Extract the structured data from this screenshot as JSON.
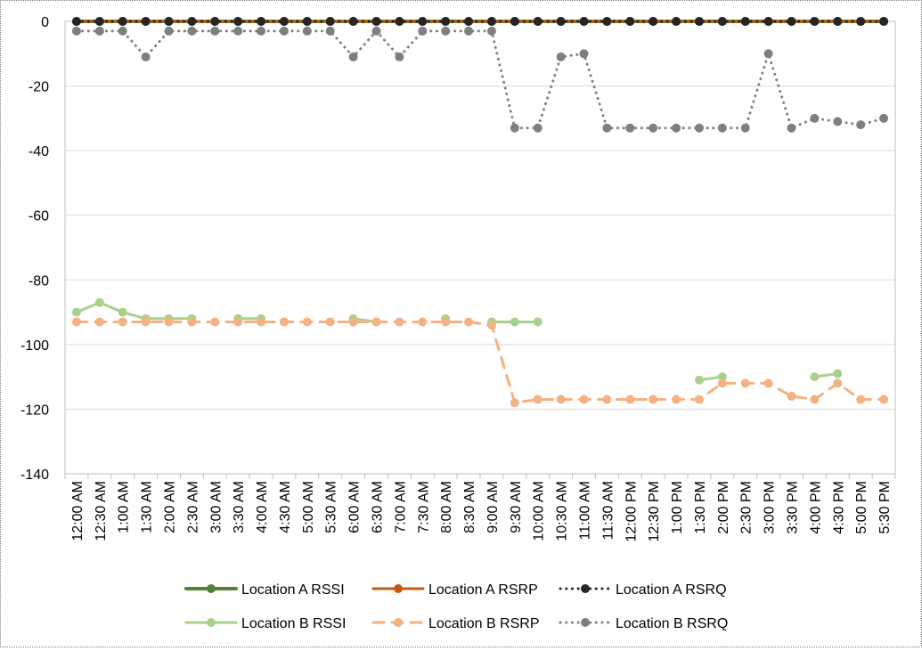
{
  "chart_data": {
    "type": "line",
    "title": "",
    "xlabel": "",
    "ylabel": "",
    "ylim": [
      -140,
      0
    ],
    "yticks": [
      0,
      -20,
      -40,
      -60,
      -80,
      -100,
      -120,
      -140
    ],
    "grid": true,
    "legend_position": "bottom",
    "categories": [
      "12:00 AM",
      "12:30 AM",
      "1:00 AM",
      "1:30 AM",
      "2:00 AM",
      "2:30 AM",
      "3:00 AM",
      "3:30 AM",
      "4:00 AM",
      "4:30 AM",
      "5:00 AM",
      "5:30 AM",
      "6:00 AM",
      "6:30 AM",
      "7:00 AM",
      "7:30 AM",
      "8:00 AM",
      "8:30 AM",
      "9:00 AM",
      "9:30 AM",
      "10:00 AM",
      "10:30 AM",
      "11:00 AM",
      "11:30 AM",
      "12:00 PM",
      "12:30 PM",
      "1:00 PM",
      "1:30 PM",
      "2:00 PM",
      "2:30 PM",
      "3:00 PM",
      "3:30 PM",
      "4:00 PM",
      "4:30 PM",
      "5:00 PM",
      "5:30 PM"
    ],
    "series": [
      {
        "name": "Location A RSSI",
        "color": "#548235",
        "style": "solid",
        "width": 4,
        "values": [
          0,
          0,
          0,
          0,
          0,
          0,
          0,
          0,
          0,
          0,
          0,
          0,
          0,
          0,
          0,
          0,
          0,
          0,
          0,
          0,
          0,
          0,
          0,
          0,
          0,
          0,
          0,
          0,
          0,
          0,
          0,
          0,
          0,
          0,
          0,
          0
        ]
      },
      {
        "name": "Location A RSRP",
        "color": "#c55a11",
        "style": "solid",
        "width": 3,
        "values": [
          0,
          0,
          0,
          0,
          0,
          0,
          0,
          0,
          0,
          0,
          0,
          0,
          0,
          0,
          0,
          0,
          0,
          0,
          0,
          0,
          0,
          0,
          0,
          0,
          0,
          0,
          0,
          0,
          0,
          0,
          0,
          0,
          0,
          0,
          0,
          0
        ]
      },
      {
        "name": "Location A RSRQ",
        "color": "#262626",
        "style": "dotted",
        "width": 3,
        "values": [
          0,
          0,
          0,
          0,
          0,
          0,
          0,
          0,
          0,
          0,
          0,
          0,
          0,
          0,
          0,
          0,
          0,
          0,
          0,
          0,
          0,
          0,
          0,
          0,
          0,
          0,
          0,
          0,
          0,
          0,
          0,
          0,
          0,
          0,
          0,
          0
        ]
      },
      {
        "name": "Location B RSSI",
        "color": "#a9d18e",
        "style": "solid",
        "width": 3,
        "values": [
          -90,
          -87,
          -90,
          -92,
          -92,
          -92,
          null,
          -92,
          -92,
          null,
          null,
          null,
          -92,
          -93,
          null,
          null,
          -92,
          null,
          -93,
          -93,
          -93,
          null,
          null,
          null,
          null,
          null,
          null,
          -111,
          -110,
          null,
          null,
          null,
          -110,
          -109,
          null,
          null
        ]
      },
      {
        "name": "Location B RSRP",
        "color": "#f4b183",
        "style": "dashed",
        "width": 3,
        "values": [
          -93,
          -93,
          -93,
          -93,
          -93,
          -93,
          -93,
          -93,
          -93,
          -93,
          -93,
          -93,
          -93,
          -93,
          -93,
          -93,
          -93,
          -93,
          -94,
          -118,
          -117,
          -117,
          -117,
          -117,
          -117,
          -117,
          -117,
          -117,
          -112,
          -112,
          -112,
          -116,
          -117,
          -112,
          -117,
          -117
        ]
      },
      {
        "name": "Location B  RSRQ",
        "color": "#7f7f7f",
        "style": "dotted",
        "width": 3,
        "values": [
          -3,
          -3,
          -3,
          -11,
          -3,
          -3,
          -3,
          -3,
          -3,
          -3,
          -3,
          -3,
          -11,
          -3,
          -11,
          -3,
          -3,
          -3,
          -3,
          -33,
          -33,
          -11,
          -10,
          -33,
          -33,
          -33,
          -33,
          -33,
          -33,
          -33,
          -10,
          -33,
          -30,
          -31,
          -32,
          -30
        ]
      }
    ]
  }
}
